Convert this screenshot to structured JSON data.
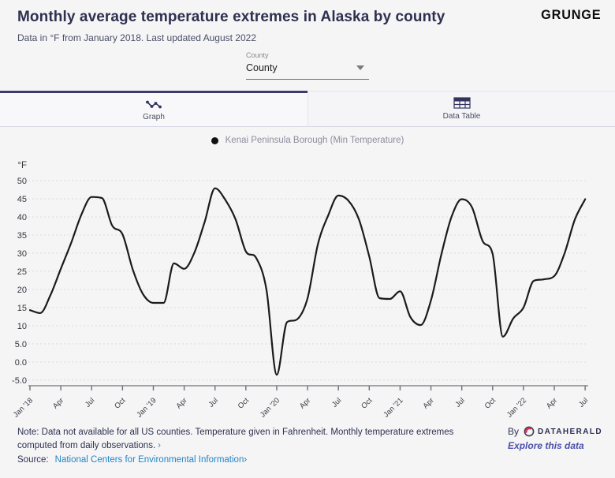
{
  "header": {
    "title": "Monthly average temperature extremes in Alaska by county",
    "subtitle": "Data in °F from January 2018. Last updated August 2022",
    "brand": "GRUNGE"
  },
  "controls": {
    "county_label": "County",
    "county_value": "County"
  },
  "tabs": [
    {
      "label": "Graph",
      "icon": "line-chart-icon",
      "active": true
    },
    {
      "label": "Data Table",
      "icon": "table-icon",
      "active": false
    }
  ],
  "legend": {
    "label": "Kenai Peninsula Borough (Min Temperature)",
    "color": "#111111"
  },
  "chart_data": {
    "type": "line",
    "title": "Monthly average temperature extremes in Alaska by county",
    "ylabel": "°F",
    "x": [
      "Jan 2018",
      "Feb 2018",
      "Mar 2018",
      "Apr 2018",
      "May 2018",
      "Jun 2018",
      "Jul 2018",
      "Aug 2018",
      "Sep 2018",
      "Oct 2018",
      "Nov 2018",
      "Dec 2018",
      "Jan 2019",
      "Feb 2019",
      "Mar 2019",
      "Apr 2019",
      "May 2019",
      "Jun 2019",
      "Jul 2019",
      "Aug 2019",
      "Sep 2019",
      "Oct 2019",
      "Nov 2019",
      "Dec 2019",
      "Jan 2020",
      "Feb 2020",
      "Mar 2020",
      "Apr 2020",
      "May 2020",
      "Jun 2020",
      "Jul 2020",
      "Aug 2020",
      "Sep 2020",
      "Oct 2020",
      "Nov 2020",
      "Dec 2020",
      "Jan 2021",
      "Feb 2021",
      "Mar 2021",
      "Apr 2021",
      "May 2021",
      "Jun 2021",
      "Jul 2021",
      "Aug 2021",
      "Sep 2021",
      "Oct 2021",
      "Nov 2021",
      "Dec 2021",
      "Jan 2022",
      "Feb 2022",
      "Mar 2022",
      "Apr 2022",
      "May 2022",
      "Jun 2022",
      "Jul 2022"
    ],
    "series": [
      {
        "name": "Kenai Peninsula Borough (Min Temperature)",
        "color": "#1b1b1b",
        "values": [
          14.3,
          13.5,
          18.5,
          25.7,
          32.8,
          40.6,
          45.5,
          45.2,
          37.6,
          35.2,
          25.5,
          18.7,
          16.3,
          16.3,
          27.2,
          25.7,
          30.2,
          38.7,
          47.9,
          44.7,
          39.3,
          30.5,
          28.7,
          20.0,
          -3.5,
          11.0,
          11.8,
          17.6,
          32.4,
          40.4,
          45.9,
          44.4,
          39.3,
          29.1,
          17.6,
          17.4,
          19.5,
          12.4,
          10.2,
          17.0,
          29.5,
          40.0,
          44.9,
          42.6,
          33.5,
          29.8,
          7.0,
          12.0,
          15.0,
          22.4,
          22.8,
          23.7,
          30.0,
          39.3,
          44.9
        ]
      }
    ],
    "x_tick_labels": [
      "Jan '18",
      "Apr",
      "Jul",
      "Oct",
      "Jan '19",
      "Apr",
      "Jul",
      "Oct",
      "Jan '20",
      "Apr",
      "Jul",
      "Oct",
      "Jan '21",
      "Apr",
      "Jul",
      "Oct",
      "Jan '22",
      "Apr",
      "Jul"
    ],
    "x_tick_every_n_months": 3,
    "y_ticks": [
      50,
      45,
      40,
      35,
      30,
      25,
      20,
      15,
      10,
      5,
      0,
      -5
    ],
    "y_tick_labels": [
      "50",
      "45",
      "40",
      "35",
      "30",
      "25",
      "20",
      "15",
      "10",
      "5.0",
      "0.0",
      "-5.0"
    ],
    "ylim": [
      -7.5,
      52
    ],
    "grid": "horizontal-dashed",
    "grid_color": "#d9d9e7",
    "axis_color": "#a2a2aa",
    "legend_position": "top-center"
  },
  "footer": {
    "note_line1": "Note: Data not available for all US counties. Temperature given in Fahrenheit. Monthly temperature extremes",
    "note_line2": "computed from daily observations.",
    "note_chevron": "›",
    "source_label": "Source:",
    "source_link": "National Centers for Environmental Information",
    "source_chevron": "›",
    "by_label": "By",
    "brand": "DATAHERALD",
    "explore_link": "Explore this data"
  }
}
